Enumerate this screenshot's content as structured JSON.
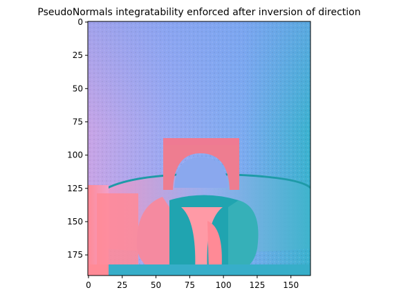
{
  "chart_data": {
    "type": "heatmap",
    "title": "PseudoNormals integratability enforced after inversion of direction",
    "xlabel": "",
    "ylabel": "",
    "xlim": [
      -0.5,
      164.5
    ],
    "ylim": [
      190.5,
      -0.5
    ],
    "x_ticks": [
      0,
      25,
      50,
      75,
      100,
      125,
      150
    ],
    "y_ticks": [
      0,
      25,
      50,
      75,
      100,
      125,
      150,
      175
    ],
    "grid": false,
    "image_description": "pseudo-normal map rendered as RGB image (pink/blue/teal)",
    "colors": {
      "background_top": "#8aa8f0",
      "background_left": "#c6a2e6",
      "teal": "#1fa7b0",
      "pink": "#ff8090",
      "cyan": "#5fc6e0"
    }
  }
}
